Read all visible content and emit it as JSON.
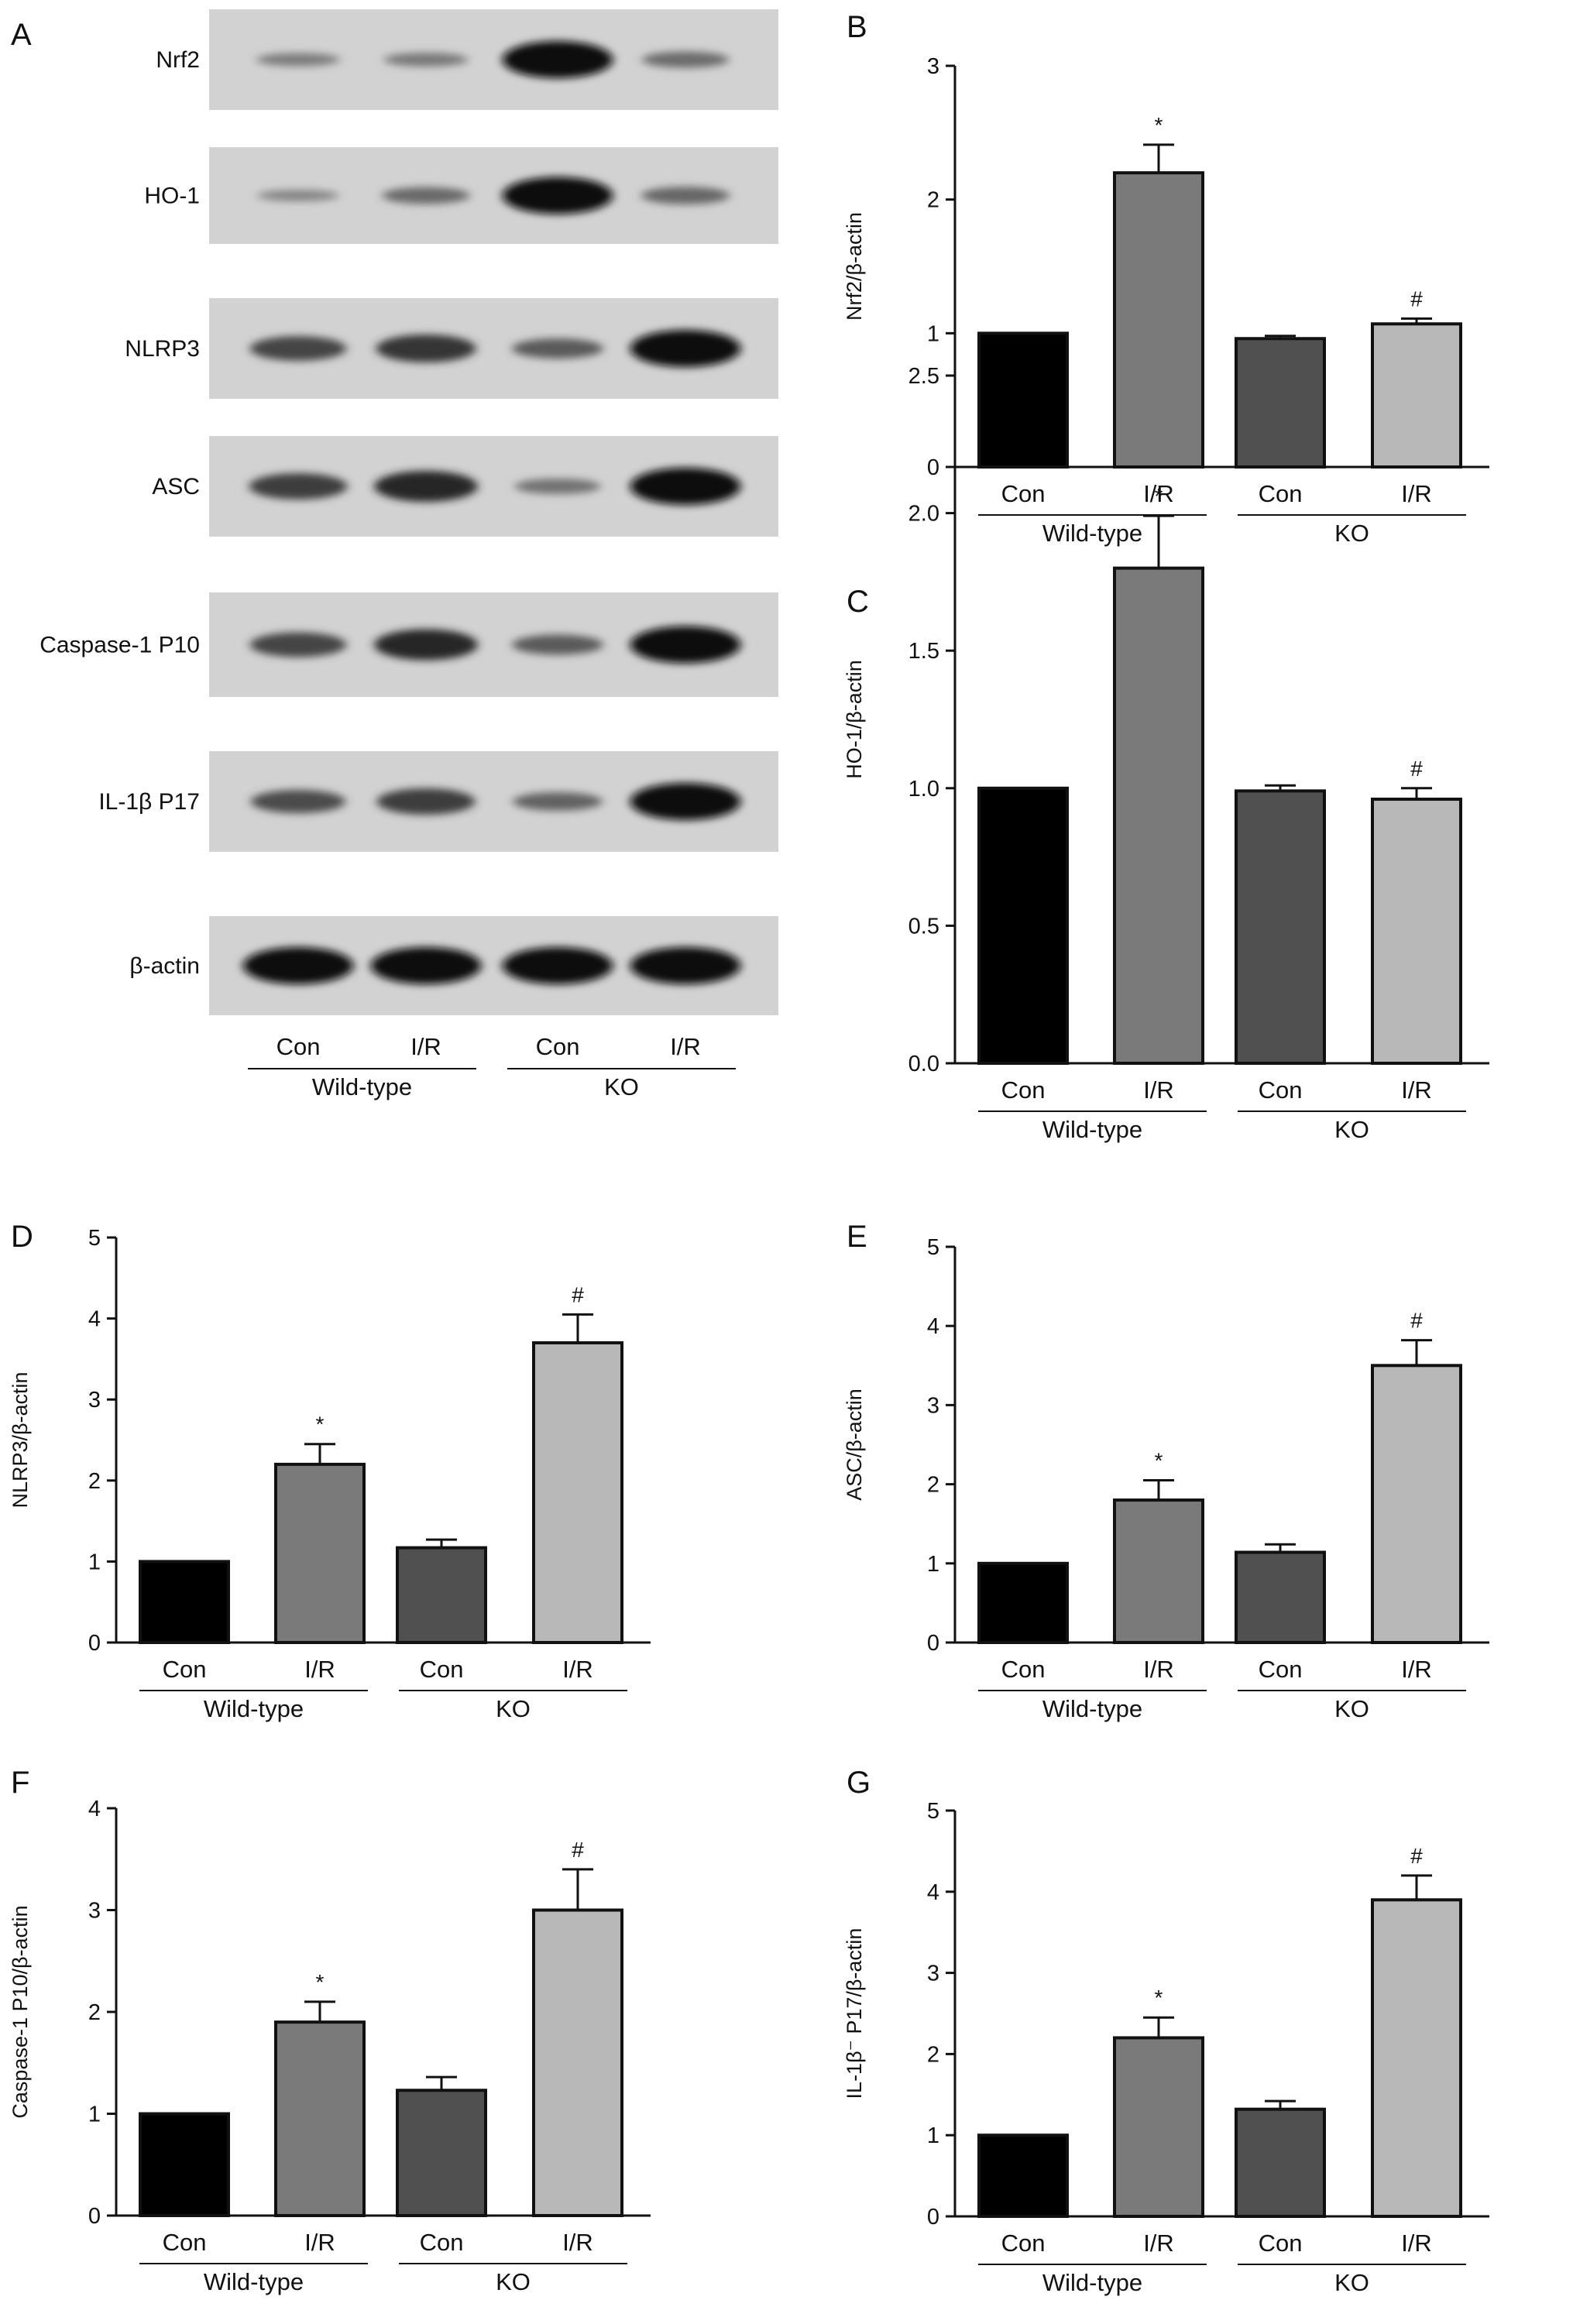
{
  "figure": {
    "panel_letters": [
      "A",
      "B",
      "C",
      "D",
      "E",
      "F",
      "G"
    ]
  },
  "blot": {
    "rows": [
      {
        "label": "Nrf2",
        "intensities": [
          0.18,
          0.2,
          0.95,
          0.28
        ]
      },
      {
        "label": "HO-1",
        "intensities": [
          0.12,
          0.3,
          0.95,
          0.32
        ]
      },
      {
        "label": "NLRP3",
        "intensities": [
          0.55,
          0.65,
          0.4,
          0.95
        ]
      },
      {
        "label": "ASC",
        "intensities": [
          0.6,
          0.75,
          0.25,
          0.95
        ]
      },
      {
        "label": "Caspase-1 P10",
        "intensities": [
          0.55,
          0.75,
          0.4,
          0.95
        ]
      },
      {
        "label": "IL-1β P17",
        "intensities": [
          0.5,
          0.6,
          0.35,
          0.95
        ]
      },
      {
        "label": "β-actin",
        "intensities": [
          0.95,
          0.95,
          0.95,
          0.95
        ]
      }
    ],
    "lanes": [
      "Con",
      "I/R",
      "Con",
      "I/R"
    ],
    "groups": [
      "Wild-type",
      "KO"
    ]
  },
  "chart_data": [
    {
      "panel": "B",
      "type": "bar",
      "ylabel": "Nrf2/β-actin",
      "ylim": [
        0,
        3
      ],
      "yticks": [
        "0",
        "1",
        "2",
        "3"
      ],
      "categories": [
        "Con",
        "I/R",
        "Con",
        "I/R"
      ],
      "groups": [
        "Wild-type",
        "KO"
      ],
      "values": [
        1.0,
        2.2,
        0.96,
        1.07
      ],
      "errors": [
        0,
        0.21,
        0.02,
        0.04
      ],
      "markers": [
        "",
        "*",
        "",
        "#"
      ],
      "colors": [
        "#000000",
        "#7a7a7a",
        "#505050",
        "#b8b8b8"
      ]
    },
    {
      "panel": "C",
      "type": "bar",
      "ylabel": "HO-1/β-actin",
      "ylim": [
        0,
        2.5
      ],
      "yticks": [
        "0.0",
        "0.5",
        "1.0",
        "1.5",
        "2.0",
        "2.5"
      ],
      "categories": [
        "Con",
        "I/R",
        "Con",
        "I/R"
      ],
      "groups": [
        "Wild-type",
        "KO"
      ],
      "values": [
        1.0,
        1.8,
        0.99,
        0.96
      ],
      "errors": [
        0,
        0.19,
        0.02,
        0.04
      ],
      "markers": [
        "",
        "*",
        "",
        "#"
      ],
      "colors": [
        "#000000",
        "#7a7a7a",
        "#505050",
        "#b8b8b8"
      ]
    },
    {
      "panel": "D",
      "type": "bar",
      "ylabel": "NLRP3/β-actin",
      "ylim": [
        0,
        5
      ],
      "yticks": [
        "0",
        "1",
        "2",
        "3",
        "4",
        "5"
      ],
      "categories": [
        "Con",
        "I/R",
        "Con",
        "I/R"
      ],
      "groups": [
        "Wild-type",
        "KO"
      ],
      "values": [
        1.0,
        2.2,
        1.17,
        3.7
      ],
      "errors": [
        0,
        0.25,
        0.1,
        0.35
      ],
      "markers": [
        "",
        "*",
        "",
        "#"
      ],
      "colors": [
        "#000000",
        "#7a7a7a",
        "#505050",
        "#b8b8b8"
      ]
    },
    {
      "panel": "E",
      "type": "bar",
      "ylabel": "ASC/β-actin",
      "ylim": [
        0,
        5
      ],
      "yticks": [
        "0",
        "1",
        "2",
        "3",
        "4",
        "5"
      ],
      "categories": [
        "Con",
        "I/R",
        "Con",
        "I/R"
      ],
      "groups": [
        "Wild-type",
        "KO"
      ],
      "values": [
        1.0,
        1.8,
        1.14,
        3.5
      ],
      "errors": [
        0,
        0.25,
        0.1,
        0.32
      ],
      "markers": [
        "",
        "*",
        "",
        "#"
      ],
      "colors": [
        "#000000",
        "#7a7a7a",
        "#505050",
        "#b8b8b8"
      ]
    },
    {
      "panel": "F",
      "type": "bar",
      "ylabel": "Caspase-1 P10/β-actin",
      "ylim": [
        0,
        4
      ],
      "yticks": [
        "0",
        "1",
        "2",
        "3",
        "4"
      ],
      "categories": [
        "Con",
        "I/R",
        "Con",
        "I/R"
      ],
      "groups": [
        "Wild-type",
        "KO"
      ],
      "values": [
        1.0,
        1.9,
        1.23,
        3.0
      ],
      "errors": [
        0,
        0.2,
        0.13,
        0.4
      ],
      "markers": [
        "",
        "*",
        "",
        "#"
      ],
      "colors": [
        "#000000",
        "#7a7a7a",
        "#505050",
        "#b8b8b8"
      ]
    },
    {
      "panel": "G",
      "type": "bar",
      "ylabel": "IL-1β⁻ P17/β-actin",
      "ylim": [
        0,
        5
      ],
      "yticks": [
        "0",
        "1",
        "2",
        "3",
        "4",
        "5"
      ],
      "categories": [
        "Con",
        "I/R",
        "Con",
        "I/R"
      ],
      "groups": [
        "Wild-type",
        "KO"
      ],
      "values": [
        1.0,
        2.2,
        1.32,
        3.9
      ],
      "errors": [
        0,
        0.25,
        0.1,
        0.3
      ],
      "markers": [
        "",
        "*",
        "",
        "#"
      ],
      "colors": [
        "#000000",
        "#7a7a7a",
        "#505050",
        "#b8b8b8"
      ]
    }
  ]
}
